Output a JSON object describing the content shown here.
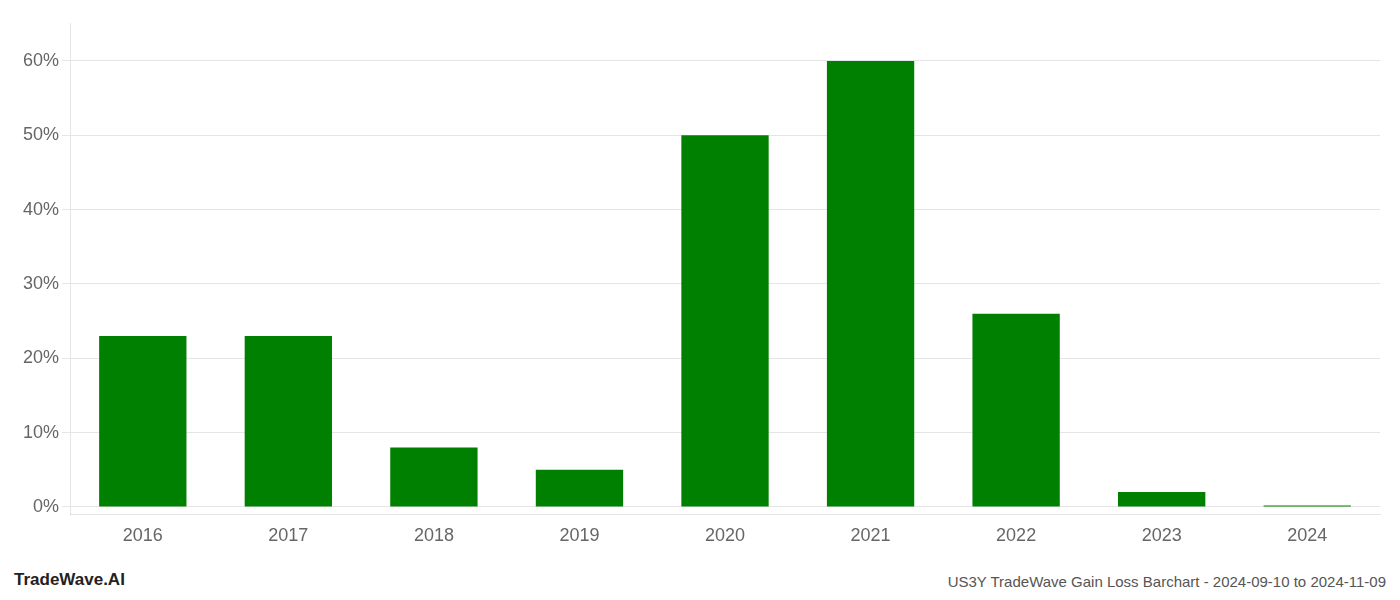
{
  "chart_data": {
    "type": "bar",
    "categories": [
      "2016",
      "2017",
      "2018",
      "2019",
      "2020",
      "2021",
      "2022",
      "2023",
      "2024"
    ],
    "values": [
      23.0,
      23.0,
      8.0,
      5.0,
      50.0,
      60.0,
      26.0,
      2.0,
      0.2
    ],
    "color": "#008000",
    "ylim": [
      -1,
      65
    ],
    "yticks": [
      {
        "value": 0,
        "label": "0%"
      },
      {
        "value": 10,
        "label": "10%"
      },
      {
        "value": 20,
        "label": "20%"
      },
      {
        "value": 30,
        "label": "30%"
      },
      {
        "value": 40,
        "label": "40%"
      },
      {
        "value": 50,
        "label": "50%"
      },
      {
        "value": 60,
        "label": "60%"
      }
    ],
    "grid": true,
    "annotations": [
      "TradeWave.AI",
      "US3Y TradeWave Gain Loss Barchart - 2024-09-10 to 2024-11-09"
    ]
  }
}
